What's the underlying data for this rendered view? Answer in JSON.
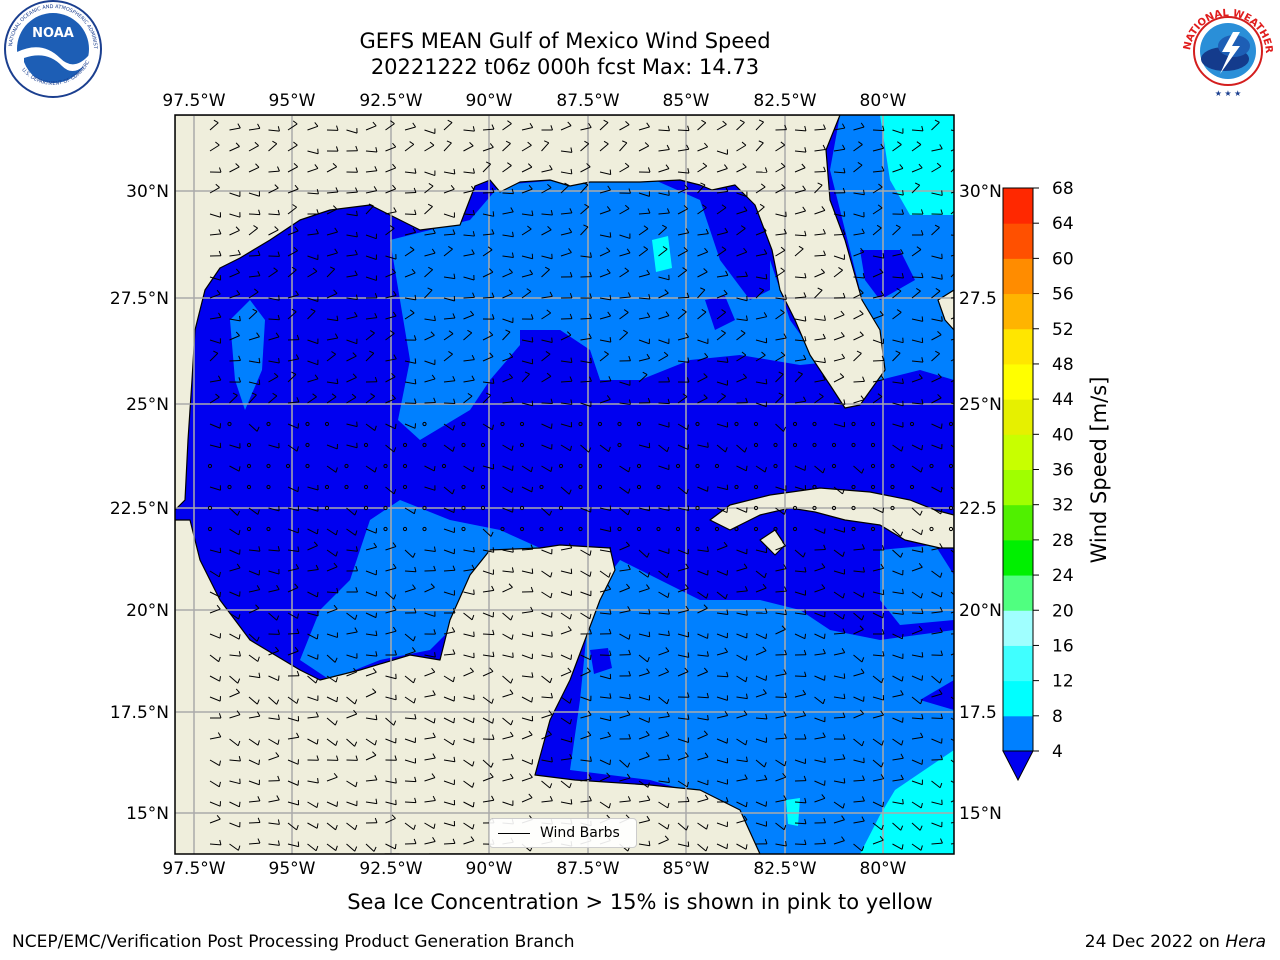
{
  "title_line1": "GEFS MEAN Gulf of Mexico Wind Speed",
  "title_line2": "20221222 t06z 000h fcst   Max: 14.73",
  "logos": {
    "left_name": "NOAA",
    "left_ring_text": "NATIONAL OCEANIC AND ATMOSPHERIC ADMINISTRATION",
    "left_ring_bottom": "U.S. DEPARTMENT OF COMMERCE",
    "right_ring_text": "NATIONAL WEATHER SERVICE"
  },
  "map": {
    "lon_labels": [
      "97.5°W",
      "95°W",
      "92.5°W",
      "90°W",
      "87.5°W",
      "85°W",
      "82.5°W",
      "80°W"
    ],
    "lat_labels_left": [
      "30°N",
      "27.5°N",
      "25°N",
      "22.5°N",
      "20°N",
      "17.5°N",
      "15°N"
    ],
    "lat_labels_right": [
      "30°N",
      "27.5",
      "25°N",
      "22.5",
      "20°N",
      "17.5",
      "15°N"
    ],
    "legend_label": "Wind Barbs",
    "colors": {
      "land": "#efeedc",
      "level_4_8": "#0080ff",
      "level_below_4": "#0000f0",
      "level_8_12": "#00ffff",
      "level_12_16": "#40ffff",
      "grid": "#aaaaaa"
    }
  },
  "colorbar": {
    "label": "Wind Speed [m/s]",
    "ticks": [
      "4",
      "8",
      "12",
      "16",
      "20",
      "24",
      "28",
      "32",
      "36",
      "40",
      "44",
      "48",
      "52",
      "56",
      "60",
      "64",
      "68"
    ],
    "colors": [
      "#0080ff",
      "#00ffff",
      "#40ffff",
      "#a0ffff",
      "#50ff80",
      "#00f000",
      "#50f000",
      "#a0ff00",
      "#c8ff00",
      "#e6f000",
      "#ffff00",
      "#ffe600",
      "#ffb400",
      "#ff8c00",
      "#ff5000",
      "#ff2800"
    ],
    "under_color": "#0000f0"
  },
  "bottom_note": "Sea Ice Concentration > 15% is shown in pink to yellow",
  "footer_left": "NCEP/EMC/Verification Post Processing Product Generation Branch",
  "footer_right_date": "24 Dec 2022 on ",
  "footer_right_host": "Hera"
}
